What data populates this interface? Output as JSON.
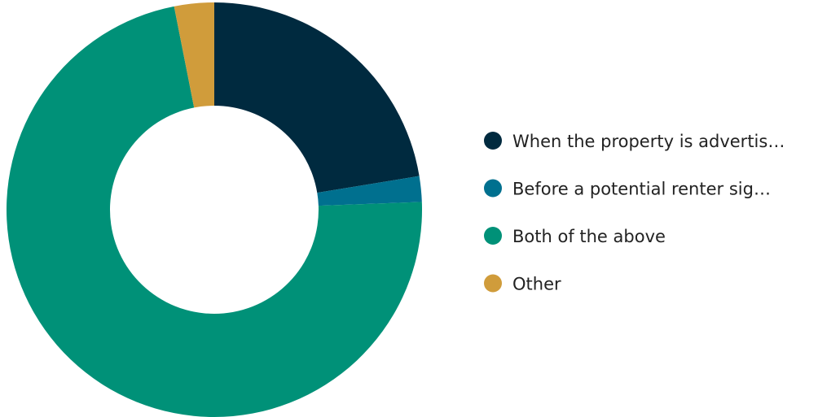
{
  "chart_data": {
    "type": "pie",
    "donut": true,
    "legend_position": "right",
    "categories": [
      "When the property is advertis…",
      "Before a potential renter sig…",
      "Both of the above",
      "Other"
    ],
    "values": [
      22.4,
      2.0,
      72.5,
      3.1
    ],
    "unit": "%",
    "colors": [
      "#002a3f",
      "#00708f",
      "#009178",
      "#d09c3b"
    ]
  }
}
